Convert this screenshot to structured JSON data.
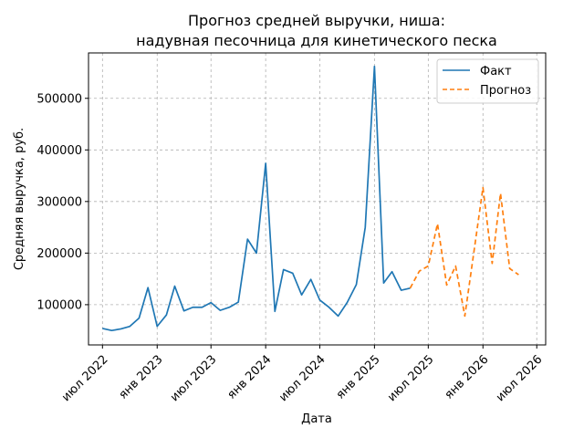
{
  "chart_data": {
    "type": "line",
    "title": [
      "Прогноз средней выручки, ниша:",
      "надувная песочница для кинетического песка"
    ],
    "xlabel": "Дата",
    "ylabel": "Средняя выручка, руб.",
    "x_ticks": [
      {
        "date": "2022-07-01",
        "label": "июл 2022"
      },
      {
        "date": "2023-01-01",
        "label": "янв 2023"
      },
      {
        "date": "2023-07-01",
        "label": "июл 2023"
      },
      {
        "date": "2024-01-01",
        "label": "янв 2024"
      },
      {
        "date": "2024-07-01",
        "label": "июл 2024"
      },
      {
        "date": "2025-01-01",
        "label": "янв 2025"
      },
      {
        "date": "2025-07-01",
        "label": "июл 2025"
      },
      {
        "date": "2026-01-01",
        "label": "янв 2026"
      },
      {
        "date": "2026-07-01",
        "label": "июл 2026"
      }
    ],
    "y_ticks": [
      100000,
      200000,
      300000,
      400000,
      500000
    ],
    "y_tick_labels": [
      "100000",
      "200000",
      "300000",
      "400000",
      "500000"
    ],
    "xlim": [
      "2022-05-15",
      "2026-07-31"
    ],
    "ylim": [
      22000,
      588000
    ],
    "grid": true,
    "legend_position": "top-right",
    "series": [
      {
        "name": "Факт",
        "color": "#1f77b4",
        "style": "solid",
        "x": [
          "2022-07-01",
          "2022-08-01",
          "2022-09-01",
          "2022-10-01",
          "2022-11-01",
          "2022-12-01",
          "2023-01-01",
          "2023-02-01",
          "2023-03-01",
          "2023-04-01",
          "2023-05-01",
          "2023-06-01",
          "2023-07-01",
          "2023-08-01",
          "2023-09-01",
          "2023-10-01",
          "2023-11-01",
          "2023-12-01",
          "2024-01-01",
          "2024-02-01",
          "2024-03-01",
          "2024-04-01",
          "2024-05-01",
          "2024-06-01",
          "2024-07-01",
          "2024-08-01",
          "2024-09-01",
          "2024-10-01",
          "2024-11-01",
          "2024-12-01",
          "2025-01-01",
          "2025-02-01",
          "2025-03-01",
          "2025-04-01",
          "2025-05-01"
        ],
        "values": [
          54000,
          50000,
          53000,
          58000,
          74000,
          133000,
          58000,
          80000,
          136000,
          88000,
          95000,
          95000,
          104000,
          89000,
          95000,
          105000,
          227000,
          200000,
          374000,
          87000,
          168000,
          161000,
          119000,
          149000,
          109000,
          95000,
          78000,
          104000,
          139000,
          250000,
          562000,
          142000,
          164000,
          128000,
          132000
        ]
      },
      {
        "name": "Прогноз",
        "color": "#ff7f0e",
        "style": "dashed",
        "x": [
          "2025-05-01",
          "2025-06-01",
          "2025-07-01",
          "2025-08-01",
          "2025-09-01",
          "2025-10-01",
          "2025-11-01",
          "2025-12-01",
          "2026-01-01",
          "2026-02-01",
          "2026-03-01",
          "2026-04-01",
          "2026-05-01"
        ],
        "values": [
          132000,
          165000,
          175000,
          257000,
          138000,
          175000,
          78000,
          200000,
          327000,
          180000,
          316000,
          170000,
          158000
        ]
      }
    ]
  }
}
